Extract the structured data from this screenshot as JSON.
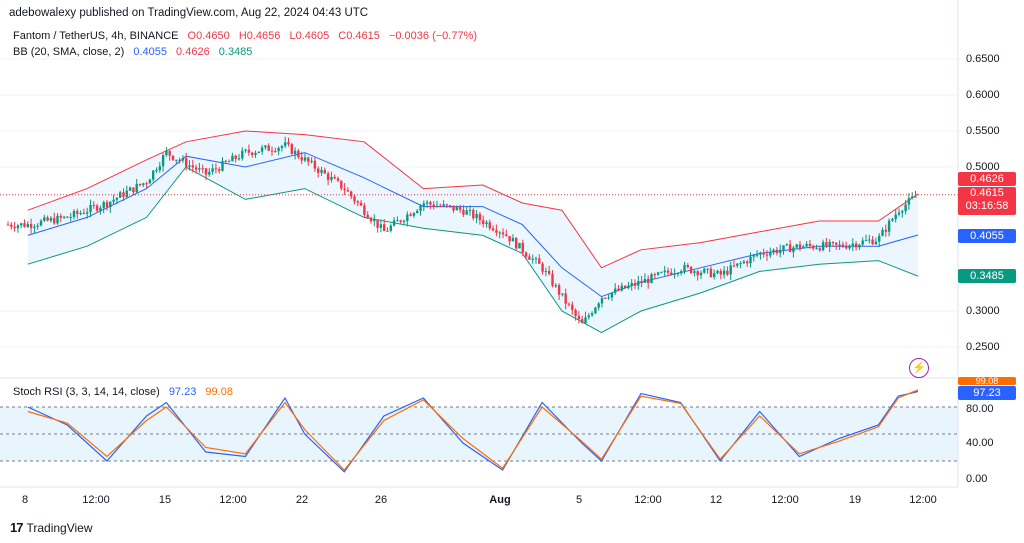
{
  "publisher": "adebowalexy published on TradingView.com, Aug 22, 2024 04:43 UTC",
  "symbol": {
    "name": "Fantom / TetherUS, 4h, BINANCE",
    "open": "O0.4650",
    "high": "H0.4656",
    "low": "L0.4605",
    "close": "C0.4615",
    "change": "−0.0036 (−0.77%)"
  },
  "bb": {
    "label": "BB (20, SMA, close, 2)",
    "basis": "0.4055",
    "upper": "0.4626",
    "lower": "0.3485"
  },
  "stoch": {
    "label": "Stoch RSI (3, 3, 14, 14, close)",
    "k": "97.23",
    "d": "99.08"
  },
  "price_badges": {
    "upper": "0.4626",
    "last": "0.4615",
    "countdown": "03:16:58",
    "basis": "0.4055",
    "lower": "0.3485"
  },
  "stoch_badges": {
    "d": "99.08",
    "k": "97.23"
  },
  "y_ticks": [
    "0.6500",
    "0.6000",
    "0.5500",
    "0.5000",
    "0.3000",
    "0.2500"
  ],
  "stoch_ticks": [
    "80.00",
    "40.00",
    "0.00"
  ],
  "x_ticks": [
    "8",
    "12:00",
    "15",
    "12:00",
    "22",
    "26",
    "Aug",
    "5",
    "12:00",
    "12",
    "12:00",
    "19",
    "12:00"
  ],
  "logo_text": "TradingView",
  "colors": {
    "up": "#089981",
    "down": "#f23645",
    "basis": "#2962ff",
    "upper": "#f23645",
    "lower": "#089981",
    "k": "#2962ff",
    "d": "#ff6d00",
    "band_fill": "#e3f2fd"
  },
  "chart_data": [
    {
      "type": "candlestick",
      "title": "Fantom / TetherUS, 4h, BINANCE",
      "ylim": [
        0.23,
        0.68
      ],
      "x_range": [
        "Jul 7",
        "Aug 22"
      ],
      "last_close": 0.4615,
      "series": [
        {
          "name": "BB basis",
          "x": [
            "Jul 8",
            "Jul 11",
            "Jul 14",
            "Jul 16",
            "Jul 19",
            "Jul 22",
            "Jul 25",
            "Jul 28",
            "Jul 31",
            "Aug 2",
            "Aug 4",
            "Aug 6",
            "Aug 8",
            "Aug 11",
            "Aug 14",
            "Aug 17",
            "Aug 20",
            "Aug 22"
          ],
          "values": [
            0.405,
            0.43,
            0.47,
            0.515,
            0.5,
            0.52,
            0.485,
            0.445,
            0.445,
            0.42,
            0.36,
            0.32,
            0.34,
            0.36,
            0.38,
            0.39,
            0.39,
            0.4055
          ]
        },
        {
          "name": "BB upper",
          "x": [
            "Jul 8",
            "Jul 11",
            "Jul 14",
            "Jul 16",
            "Jul 19",
            "Jul 22",
            "Jul 25",
            "Jul 28",
            "Jul 31",
            "Aug 2",
            "Aug 4",
            "Aug 6",
            "Aug 8",
            "Aug 11",
            "Aug 14",
            "Aug 17",
            "Aug 20",
            "Aug 22"
          ],
          "values": [
            0.44,
            0.47,
            0.51,
            0.535,
            0.55,
            0.545,
            0.535,
            0.47,
            0.475,
            0.45,
            0.44,
            0.36,
            0.385,
            0.395,
            0.41,
            0.425,
            0.425,
            0.4626
          ]
        },
        {
          "name": "BB lower",
          "x": [
            "Jul 8",
            "Jul 11",
            "Jul 14",
            "Jul 16",
            "Jul 19",
            "Jul 22",
            "Jul 25",
            "Jul 28",
            "Jul 31",
            "Aug 2",
            "Aug 4",
            "Aug 6",
            "Aug 8",
            "Aug 11",
            "Aug 14",
            "Aug 17",
            "Aug 20",
            "Aug 22"
          ],
          "values": [
            0.365,
            0.39,
            0.43,
            0.5,
            0.455,
            0.47,
            0.43,
            0.415,
            0.405,
            0.38,
            0.3,
            0.27,
            0.3,
            0.325,
            0.355,
            0.365,
            0.37,
            0.3485
          ]
        },
        {
          "name": "Close",
          "x": [
            "Jul 8",
            "Jul 10",
            "Jul 12",
            "Jul 14",
            "Jul 15",
            "Jul 17",
            "Jul 19",
            "Jul 21",
            "Jul 22",
            "Jul 24",
            "Jul 26",
            "Jul 28",
            "Jul 30",
            "Aug 1",
            "Aug 3",
            "Aug 5",
            "Aug 6",
            "Aug 8",
            "Aug 10",
            "Aug 12",
            "Aug 14",
            "Aug 16",
            "Aug 18",
            "Aug 20",
            "Aug 21",
            "Aug 22"
          ],
          "values": [
            0.42,
            0.43,
            0.45,
            0.48,
            0.52,
            0.49,
            0.52,
            0.53,
            0.51,
            0.47,
            0.41,
            0.45,
            0.44,
            0.41,
            0.36,
            0.28,
            0.32,
            0.34,
            0.36,
            0.35,
            0.38,
            0.39,
            0.39,
            0.4,
            0.44,
            0.4615
          ]
        }
      ]
    },
    {
      "type": "line",
      "title": "Stoch RSI (3, 3, 14, 14, close)",
      "ylim": [
        0,
        100
      ],
      "bands": [
        20,
        80
      ],
      "x": [
        "Jul 8",
        "Jul 10",
        "Jul 12",
        "Jul 14",
        "Jul 15",
        "Jul 17",
        "Jul 19",
        "Jul 21",
        "Jul 22",
        "Jul 24",
        "Jul 26",
        "Jul 28",
        "Jul 30",
        "Aug 1",
        "Aug 3",
        "Aug 5",
        "Aug 6",
        "Aug 8",
        "Aug 10",
        "Aug 12",
        "Aug 14",
        "Aug 16",
        "Aug 18",
        "Aug 20",
        "Aug 21",
        "Aug 22"
      ],
      "series": [
        {
          "name": "K",
          "values": [
            80,
            60,
            20,
            70,
            85,
            30,
            25,
            90,
            50,
            8,
            70,
            90,
            40,
            10,
            85,
            40,
            20,
            95,
            85,
            20,
            75,
            25,
            45,
            60,
            92,
            97.23
          ]
        },
        {
          "name": "D",
          "values": [
            75,
            62,
            25,
            65,
            80,
            35,
            28,
            85,
            55,
            10,
            65,
            88,
            45,
            12,
            80,
            42,
            22,
            92,
            84,
            22,
            70,
            28,
            42,
            58,
            90,
            99.08
          ]
        }
      ]
    }
  ]
}
